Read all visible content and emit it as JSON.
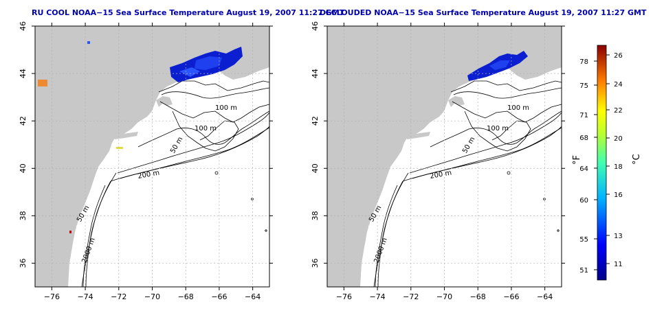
{
  "colors": {
    "title": "#0000aa",
    "land": "#c8c8c8",
    "frame": "#000000",
    "grid": "#b0b0b0",
    "cold": "#0a1fcc",
    "warm": "#cc2200"
  },
  "panels": [
    {
      "title": "RU COOL NOAA−15 Sea Surface Temperature August 19, 2007 11:27 GMT"
    },
    {
      "title": "DECLOUDED NOAA−15 Sea Surface Temperature August 19, 2007 11:27 GMT"
    }
  ],
  "axes": {
    "x_ticks": [
      "−76",
      "−74",
      "−72",
      "−70",
      "−68",
      "−66",
      "−64"
    ],
    "y_ticks": [
      "46",
      "44",
      "42",
      "40",
      "38",
      "36"
    ],
    "x_values": [
      -76,
      -74,
      -72,
      -70,
      -68,
      -66,
      -64
    ],
    "y_values": [
      46,
      44,
      42,
      40,
      38,
      36
    ],
    "xlim": [
      -77,
      -63
    ],
    "ylim": [
      35,
      46
    ]
  },
  "contour_labels": [
    "100 m",
    "100 m",
    "50 m",
    "200 m",
    "50 m",
    "2000 m"
  ],
  "colorbar": {
    "fahrenheit": [
      "78",
      "75",
      "71",
      "68",
      "64",
      "60",
      "55",
      "51"
    ],
    "celsius": [
      "26",
      "24",
      "22",
      "20",
      "18",
      "16",
      "13",
      "11"
    ],
    "unit_f": "°F",
    "unit_c": "°C"
  }
}
